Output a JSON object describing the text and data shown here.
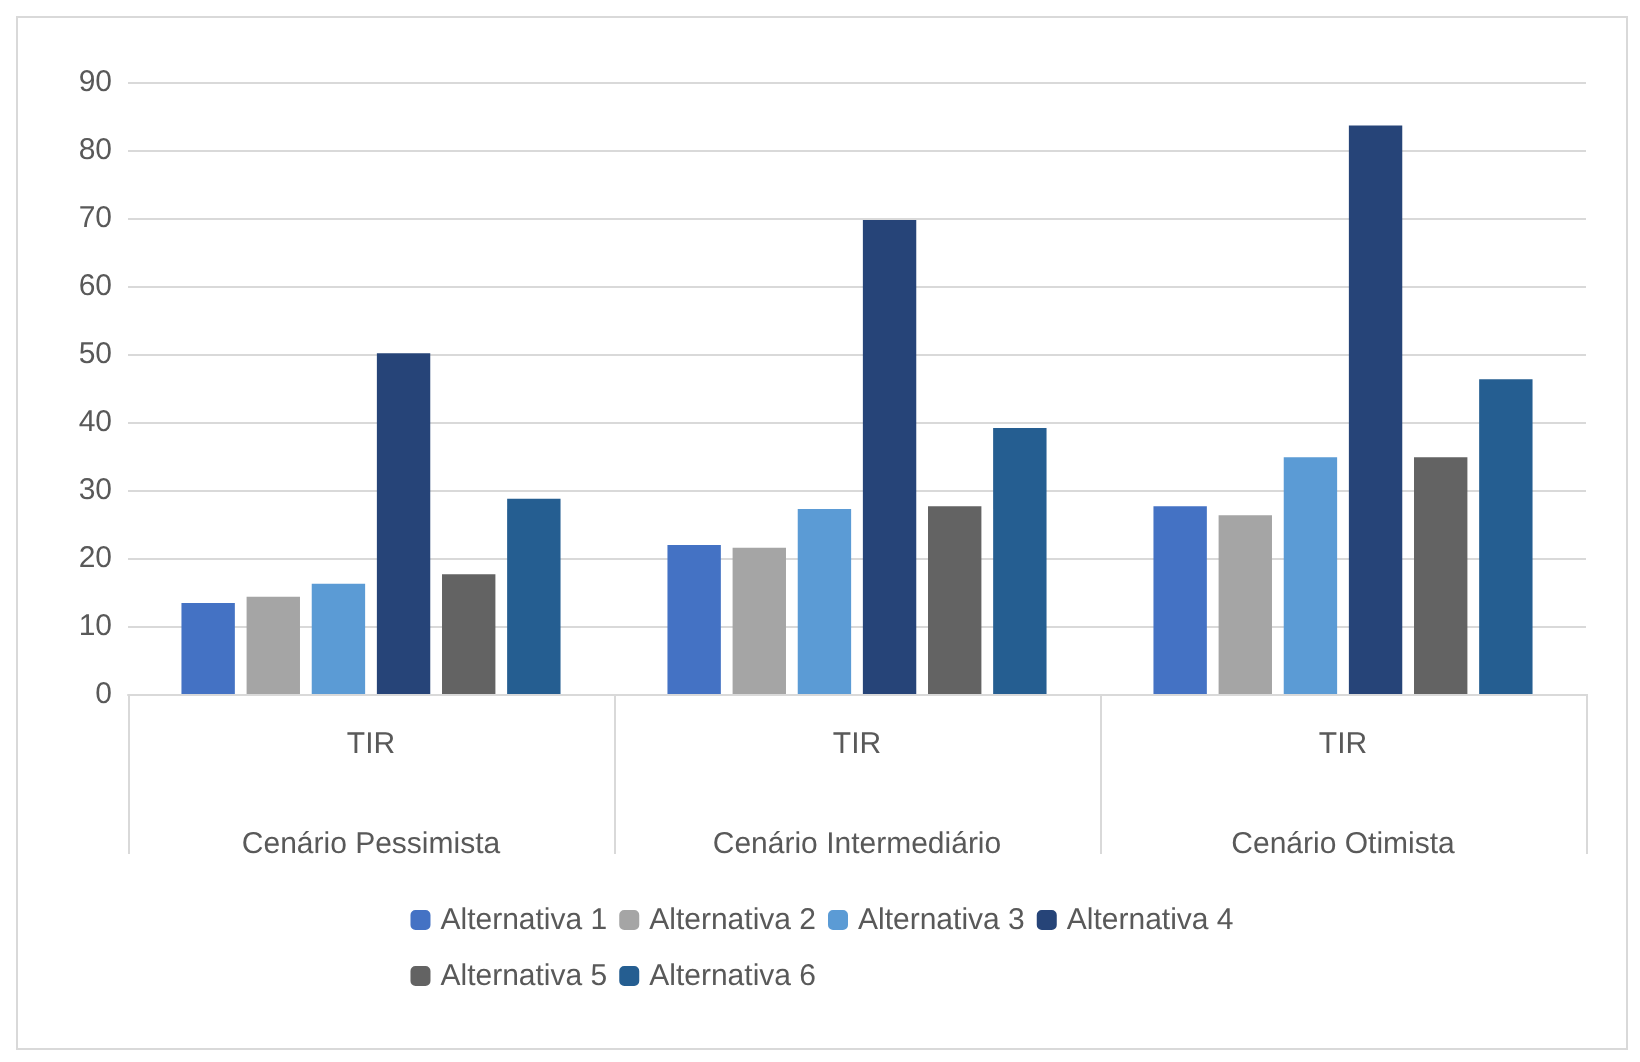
{
  "chart_data": {
    "type": "bar",
    "categories": [
      "TIR\nCenário Pessimista",
      "TIR\nCenário Intermediário",
      "TIR\nCenário Otimista"
    ],
    "series": [
      {
        "name": "Alternativa 1",
        "color": "#4472c4",
        "values": [
          13.4,
          21.9,
          27.6
        ]
      },
      {
        "name": "Alternativa 2",
        "color": "#a5a5a5",
        "values": [
          14.3,
          21.5,
          26.3
        ]
      },
      {
        "name": "Alternativa 3",
        "color": "#5b9bd5",
        "values": [
          16.2,
          27.2,
          34.8
        ]
      },
      {
        "name": "Alternativa 4",
        "color": "#264478",
        "values": [
          50.1,
          69.7,
          83.6
        ]
      },
      {
        "name": "Alternativa 5",
        "color": "#636363",
        "values": [
          17.6,
          27.6,
          34.8
        ]
      },
      {
        "name": "Alternativa 6",
        "color": "#255e91",
        "values": [
          28.7,
          39.1,
          46.3
        ]
      }
    ],
    "ylim": [
      0,
      90
    ],
    "yticks": [
      0,
      10,
      20,
      30,
      40,
      50,
      60,
      70,
      80,
      90
    ],
    "grid": "y",
    "legend": "bottom"
  }
}
